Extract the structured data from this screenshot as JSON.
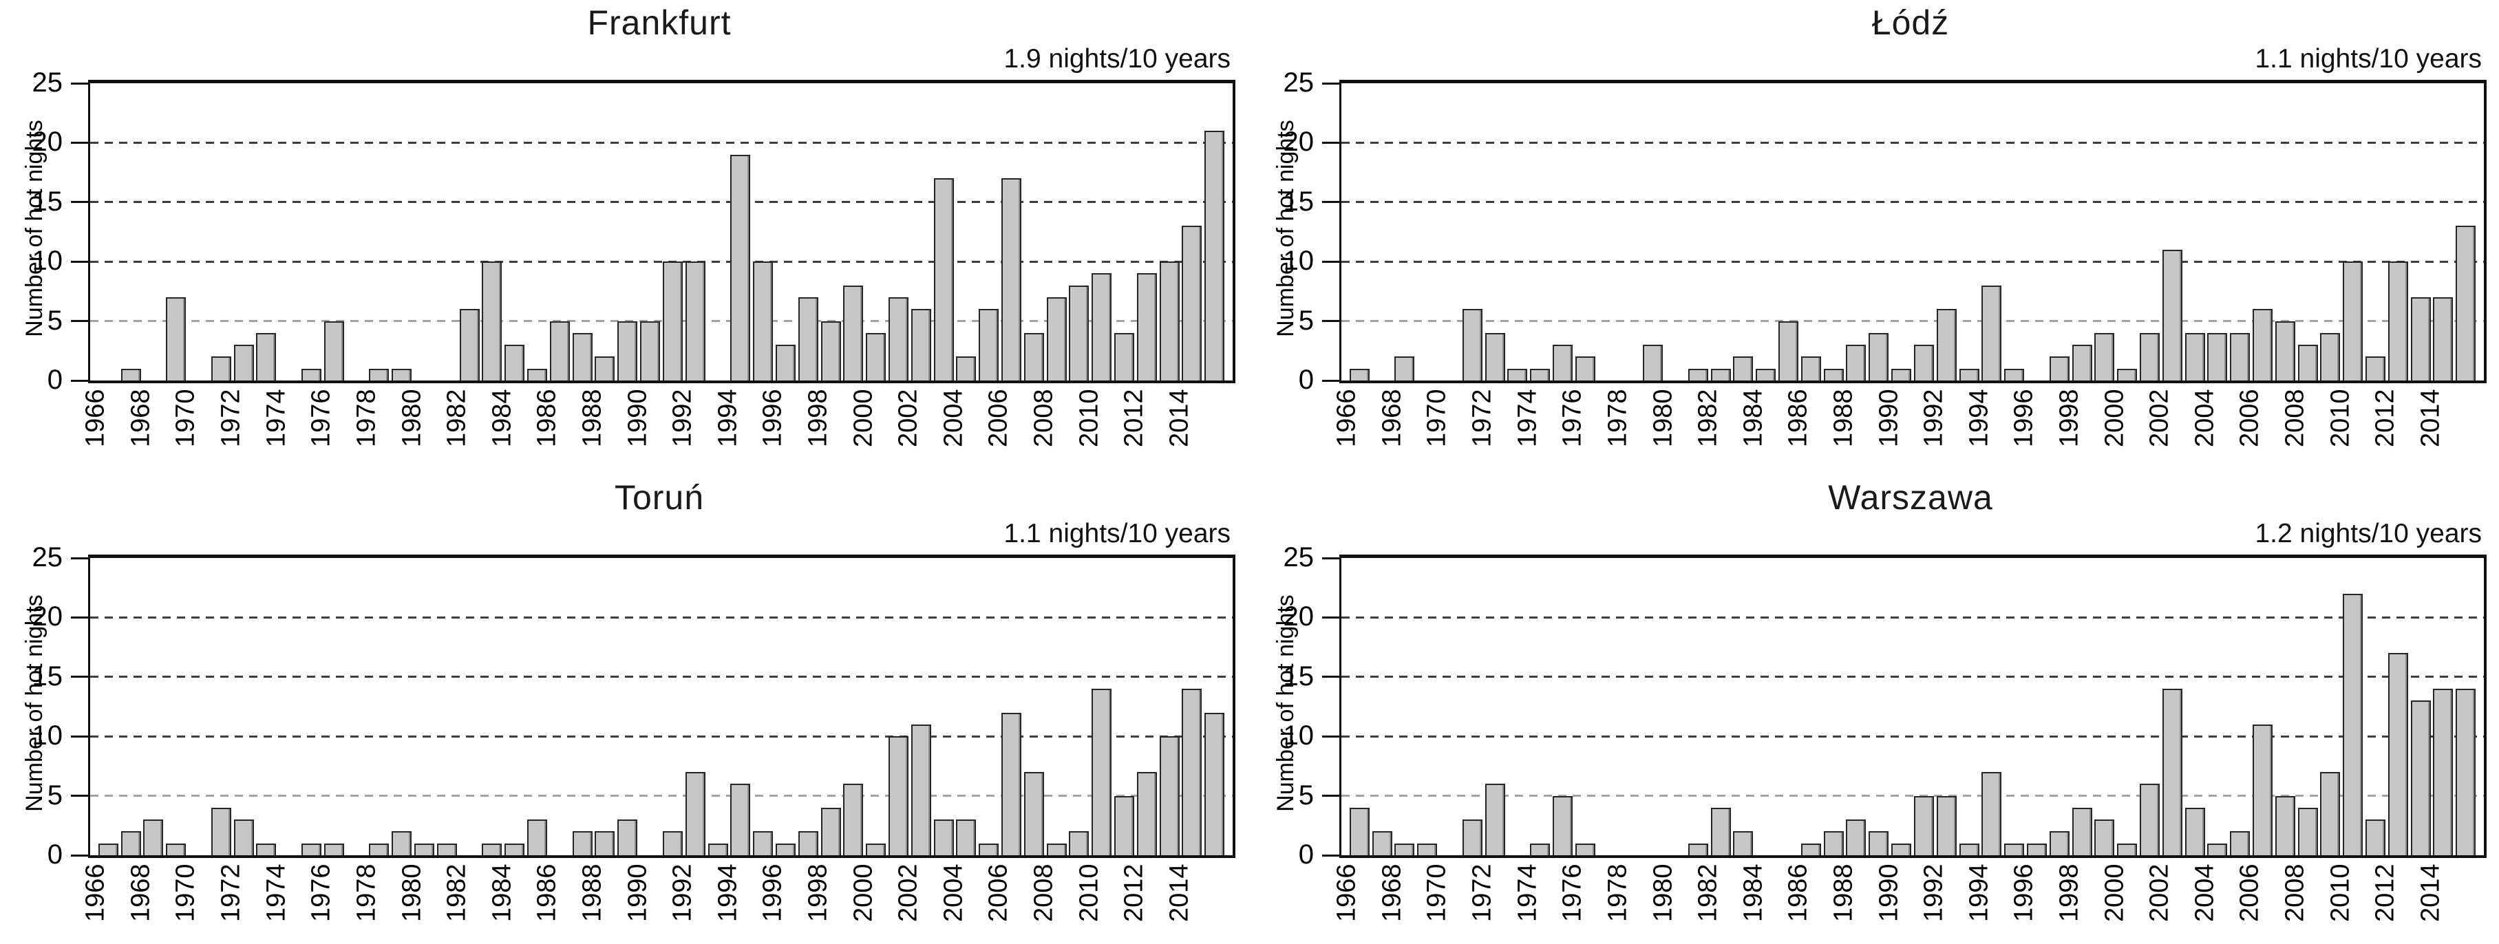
{
  "figure": {
    "ylabel": "Number of hot nights",
    "background_color": "#ffffff",
    "bar_fill_color": "#c7c7c7",
    "bar_border_color": "#262626",
    "gridline_dark_color": "#3e3e3e",
    "gridline_light_color": "#a2a2a2",
    "frame_color": "#101010"
  },
  "chart_data": [
    {
      "type": "bar",
      "title": "Frankfurt",
      "annotation": "1.9 nights/10 years",
      "ylabel": "Number of hot nights",
      "xlabel": "",
      "x_start_year": 1966,
      "x_end_year": 2015,
      "xtick_labels": [
        1966,
        1968,
        1970,
        1972,
        1974,
        1976,
        1978,
        1980,
        1982,
        1984,
        1986,
        1988,
        1990,
        1992,
        1994,
        1996,
        1998,
        2000,
        2002,
        2004,
        2006,
        2008,
        2010,
        2012,
        2014
      ],
      "ylim": [
        0,
        25
      ],
      "yticks": [
        0,
        5,
        10,
        15,
        20,
        25
      ],
      "grid": "horizontal dashed at 5,10,15,20",
      "legend": "none",
      "values": [
        0,
        1,
        0,
        7,
        0,
        2,
        3,
        4,
        0,
        1,
        5,
        0,
        1,
        1,
        0,
        0,
        6,
        10,
        3,
        1,
        5,
        4,
        2,
        5,
        5,
        10,
        10,
        0,
        19,
        10,
        3,
        7,
        5,
        8,
        4,
        7,
        6,
        17,
        2,
        6,
        17,
        4,
        7,
        8,
        9,
        4,
        9,
        10,
        13,
        21
      ]
    },
    {
      "type": "bar",
      "title": "Łódź",
      "annotation": "1.1 nights/10 years",
      "ylabel": "Number of hot nights",
      "xlabel": "",
      "x_start_year": 1966,
      "x_end_year": 2015,
      "xtick_labels": [
        1966,
        1968,
        1970,
        1972,
        1974,
        1976,
        1978,
        1980,
        1982,
        1984,
        1986,
        1988,
        1990,
        1992,
        1994,
        1996,
        1998,
        2000,
        2002,
        2004,
        2006,
        2008,
        2010,
        2012,
        2014
      ],
      "ylim": [
        0,
        25
      ],
      "yticks": [
        0,
        5,
        10,
        15,
        20,
        25
      ],
      "grid": "horizontal dashed at 5,10,15,20",
      "legend": "none",
      "values": [
        1,
        0,
        2,
        0,
        0,
        6,
        4,
        1,
        1,
        3,
        2,
        0,
        0,
        3,
        0,
        1,
        1,
        2,
        1,
        5,
        2,
        1,
        3,
        4,
        1,
        3,
        6,
        1,
        8,
        1,
        0,
        2,
        3,
        4,
        1,
        4,
        11,
        4,
        4,
        4,
        6,
        5,
        3,
        4,
        10,
        2,
        10,
        7,
        7,
        13
      ]
    },
    {
      "type": "bar",
      "title": "Toruń",
      "annotation": "1.1 nights/10 years",
      "ylabel": "Number of hot nights",
      "xlabel": "",
      "x_start_year": 1966,
      "x_end_year": 2015,
      "xtick_labels": [
        1966,
        1968,
        1970,
        1972,
        1974,
        1976,
        1978,
        1980,
        1982,
        1984,
        1986,
        1988,
        1990,
        1992,
        1994,
        1996,
        1998,
        2000,
        2002,
        2004,
        2006,
        2008,
        2010,
        2012,
        2014
      ],
      "ylim": [
        0,
        25
      ],
      "yticks": [
        0,
        5,
        10,
        15,
        20,
        25
      ],
      "grid": "horizontal dashed at 5,10,15,20",
      "legend": "none",
      "values": [
        1,
        2,
        3,
        1,
        0,
        4,
        3,
        1,
        0,
        1,
        1,
        0,
        1,
        2,
        1,
        1,
        0,
        1,
        1,
        3,
        0,
        2,
        2,
        3,
        0,
        2,
        7,
        1,
        6,
        2,
        1,
        2,
        4,
        6,
        1,
        10,
        11,
        3,
        3,
        1,
        12,
        7,
        1,
        2,
        14,
        5,
        7,
        10,
        14,
        12
      ]
    },
    {
      "type": "bar",
      "title": "Warszawa",
      "annotation": "1.2 nights/10 years",
      "ylabel": "Number of hot nights",
      "xlabel": "",
      "x_start_year": 1966,
      "x_end_year": 2015,
      "xtick_labels": [
        1966,
        1968,
        1970,
        1972,
        1974,
        1976,
        1978,
        1980,
        1982,
        1984,
        1986,
        1988,
        1990,
        1992,
        1994,
        1996,
        1998,
        2000,
        2002,
        2004,
        2006,
        2008,
        2010,
        2012,
        2014
      ],
      "ylim": [
        0,
        25
      ],
      "yticks": [
        0,
        5,
        10,
        15,
        20,
        25
      ],
      "grid": "horizontal dashed at 5,10,15,20",
      "legend": "none",
      "values": [
        4,
        2,
        1,
        1,
        0,
        3,
        6,
        0,
        1,
        5,
        1,
        0,
        0,
        0,
        0,
        1,
        4,
        2,
        0,
        0,
        1,
        2,
        3,
        2,
        1,
        5,
        5,
        1,
        7,
        1,
        1,
        2,
        4,
        3,
        1,
        6,
        14,
        4,
        1,
        2,
        11,
        5,
        4,
        7,
        22,
        3,
        17,
        13,
        14,
        14
      ]
    }
  ]
}
